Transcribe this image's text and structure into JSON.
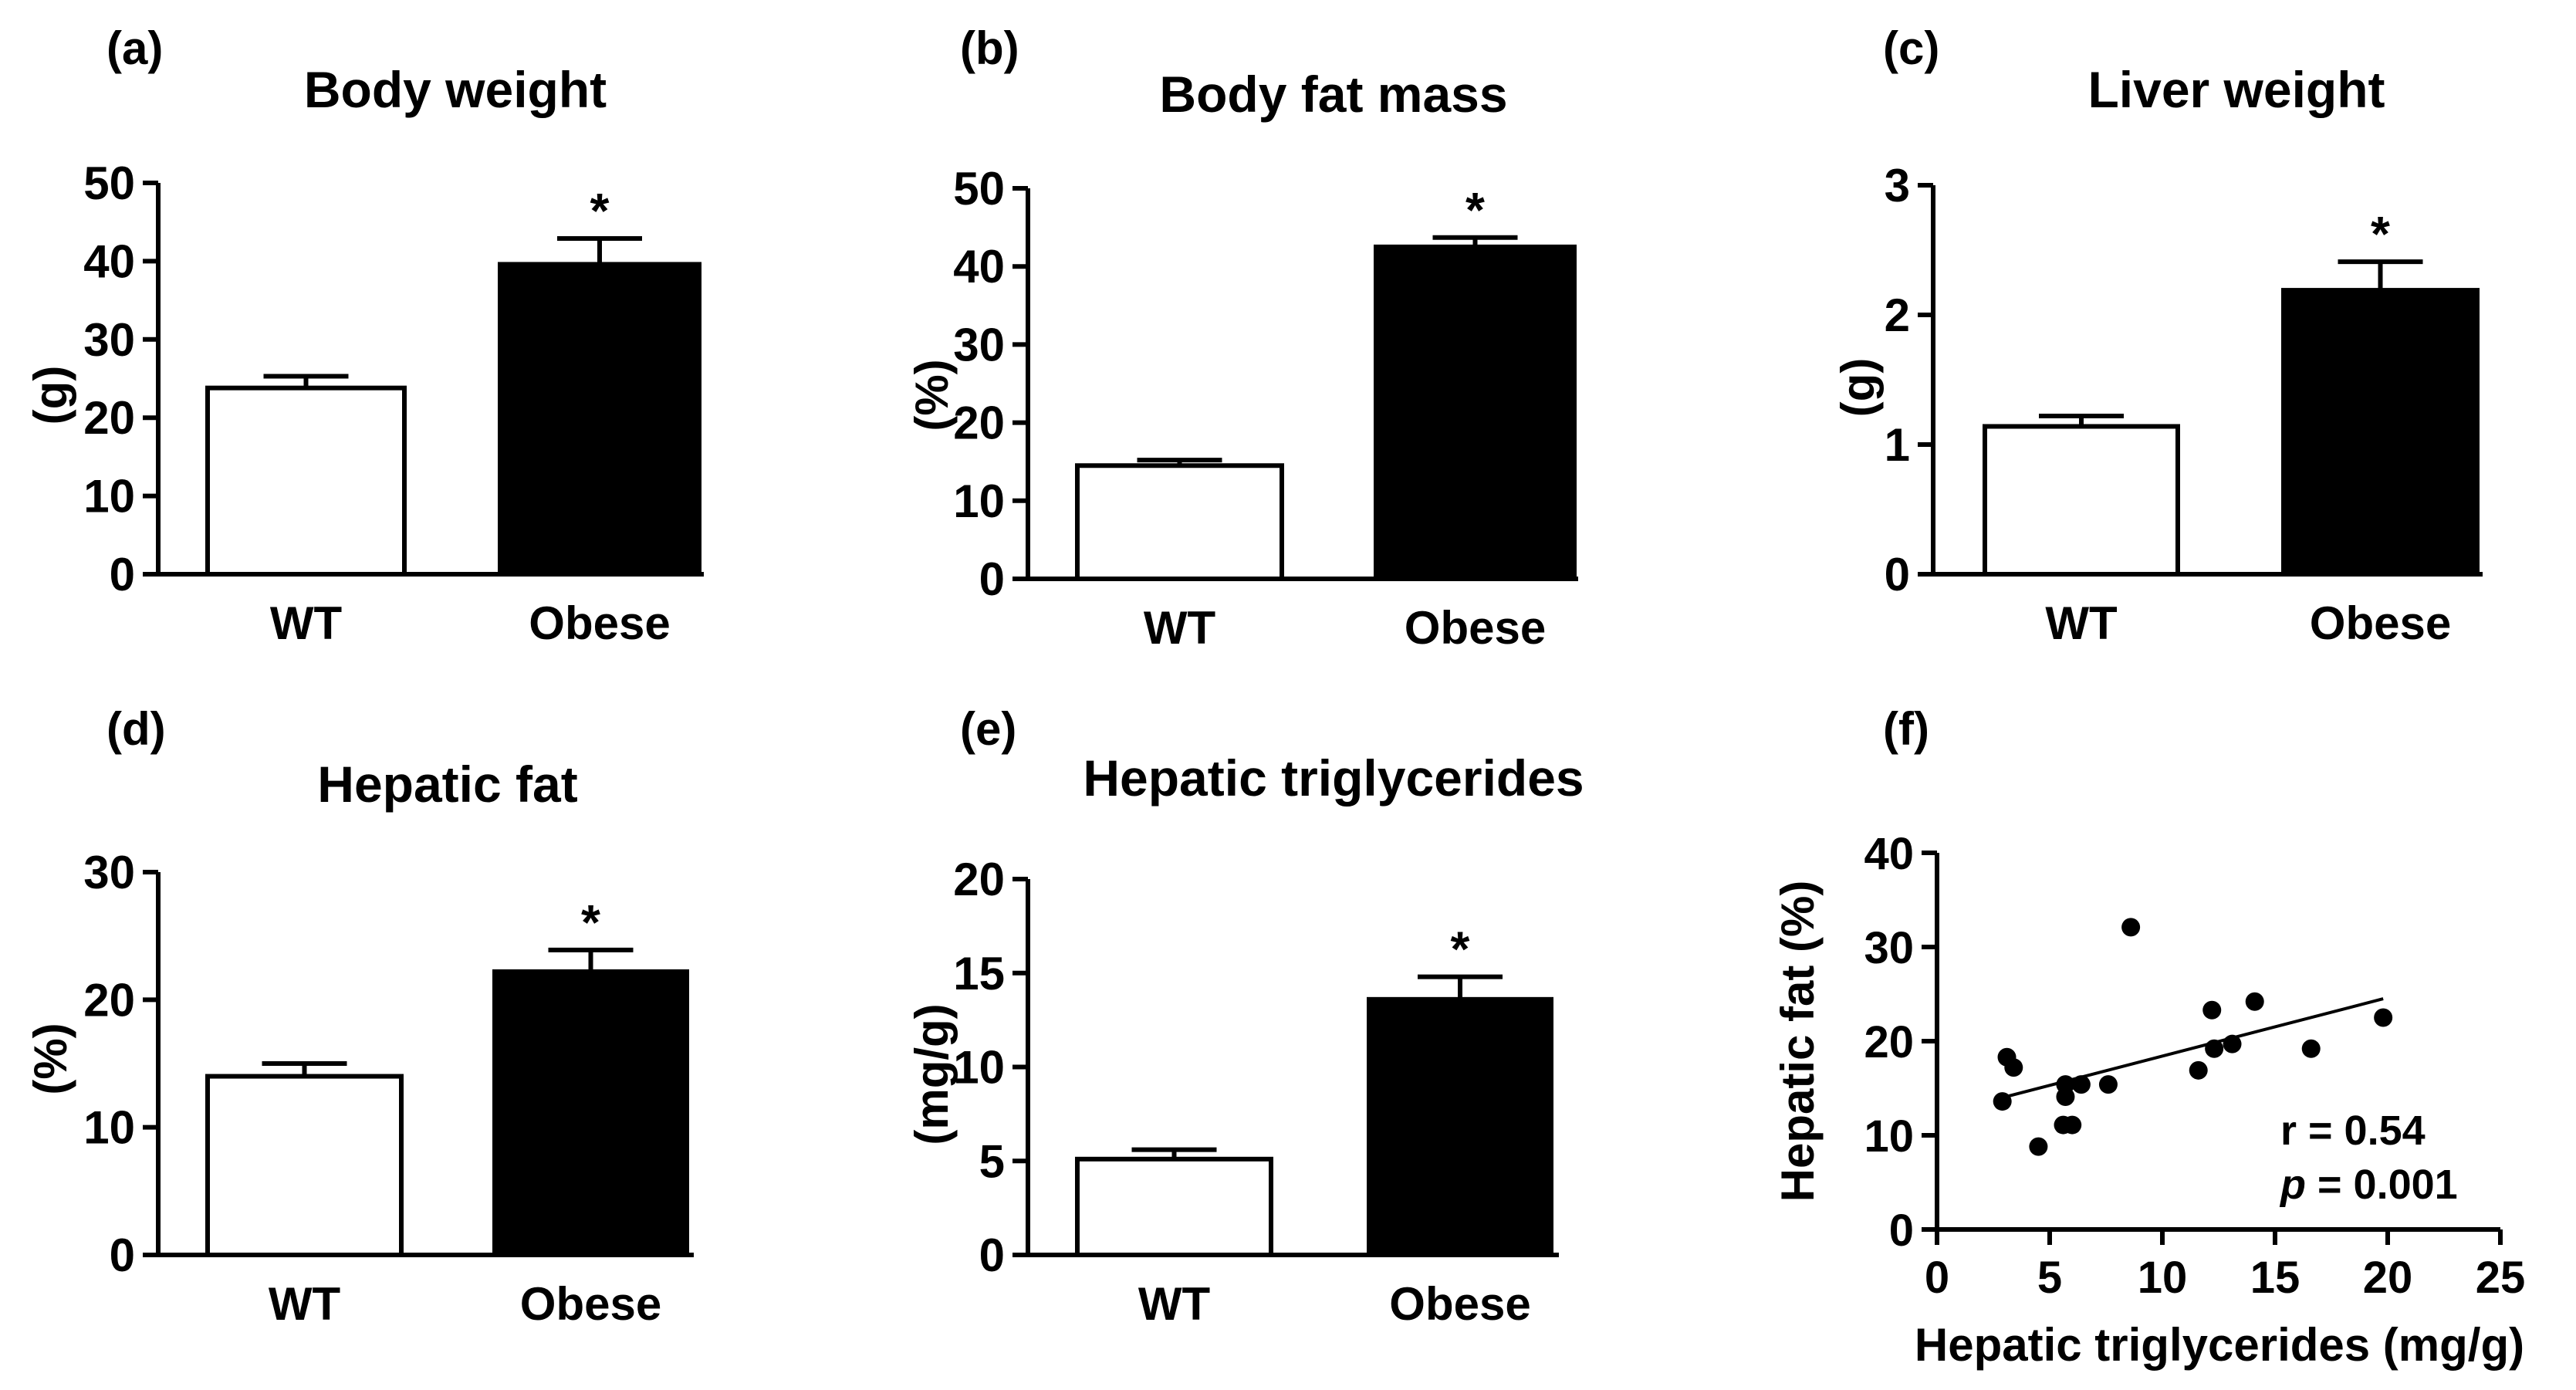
{
  "figure": {
    "panels": [
      {
        "label": "(a)",
        "title": "Body weight"
      },
      {
        "label": "(b)",
        "title": "Body fat mass"
      },
      {
        "label": "(c)",
        "title": "Liver weight"
      },
      {
        "label": "(d)",
        "title": "Hepatic fat"
      },
      {
        "label": "(e)",
        "title": "Hepatic triglycerides"
      },
      {
        "label": "(f)",
        "title": ""
      }
    ]
  },
  "chart_data": [
    {
      "type": "bar",
      "title": "Body weight",
      "xlabel": "",
      "ylabel": "(g)",
      "categories": [
        "WT",
        "Obese"
      ],
      "values": [
        23.8,
        39.6
      ],
      "errors": [
        1.5,
        3.3
      ],
      "bar_colors": [
        "#ffffff",
        "#000000"
      ],
      "significance": [
        "",
        "*"
      ],
      "ylim": [
        0,
        50
      ],
      "yticks": [
        0,
        10,
        20,
        30,
        40,
        50
      ]
    },
    {
      "type": "bar",
      "title": "Body fat mass",
      "xlabel": "",
      "ylabel": "(%)",
      "categories": [
        "WT",
        "Obese"
      ],
      "values": [
        14.5,
        42.5
      ],
      "errors": [
        0.7,
        1.2
      ],
      "bar_colors": [
        "#ffffff",
        "#000000"
      ],
      "significance": [
        "",
        "*"
      ],
      "ylim": [
        0,
        50
      ],
      "yticks": [
        0,
        10,
        20,
        30,
        40,
        50
      ]
    },
    {
      "type": "bar",
      "title": "Liver weight",
      "xlabel": "",
      "ylabel": "(g)",
      "categories": [
        "WT",
        "Obese"
      ],
      "values": [
        1.14,
        2.19
      ],
      "errors": [
        0.08,
        0.22
      ],
      "bar_colors": [
        "#ffffff",
        "#000000"
      ],
      "significance": [
        "",
        "*"
      ],
      "ylim": [
        0,
        3
      ],
      "yticks": [
        0,
        1,
        2,
        3
      ]
    },
    {
      "type": "bar",
      "title": "Hepatic fat",
      "xlabel": "",
      "ylabel": "(%)",
      "categories": [
        "WT",
        "Obese"
      ],
      "values": [
        14.0,
        22.2
      ],
      "errors": [
        1.0,
        1.7
      ],
      "bar_colors": [
        "#ffffff",
        "#000000"
      ],
      "significance": [
        "",
        "*"
      ],
      "ylim": [
        0,
        30
      ],
      "yticks": [
        0,
        10,
        20,
        30
      ]
    },
    {
      "type": "bar",
      "title": "Hepatic triglycerides",
      "xlabel": "",
      "ylabel": "(mg/g)",
      "categories": [
        "WT",
        "Obese"
      ],
      "values": [
        5.1,
        13.6
      ],
      "errors": [
        0.5,
        1.2
      ],
      "bar_colors": [
        "#ffffff",
        "#000000"
      ],
      "significance": [
        "",
        "*"
      ],
      "ylim": [
        0,
        20
      ],
      "yticks": [
        0,
        5,
        10,
        15,
        20
      ]
    },
    {
      "type": "scatter",
      "title": "",
      "xlabel": "Hepatic triglycerides (mg/g)",
      "ylabel": "Hepatic fat (%)",
      "xlim": [
        0,
        25
      ],
      "ylim": [
        0,
        40
      ],
      "xticks": [
        0,
        5,
        10,
        15,
        20,
        25
      ],
      "yticks": [
        0,
        10,
        20,
        30,
        40
      ],
      "points": [
        {
          "x": 2.9,
          "y": 13.6
        },
        {
          "x": 3.1,
          "y": 18.3
        },
        {
          "x": 3.4,
          "y": 17.2
        },
        {
          "x": 4.5,
          "y": 8.8
        },
        {
          "x": 5.6,
          "y": 11.1
        },
        {
          "x": 5.7,
          "y": 15.4
        },
        {
          "x": 5.7,
          "y": 14.1
        },
        {
          "x": 6.0,
          "y": 11.1
        },
        {
          "x": 6.4,
          "y": 15.4
        },
        {
          "x": 7.6,
          "y": 15.4
        },
        {
          "x": 8.6,
          "y": 32.1
        },
        {
          "x": 11.6,
          "y": 16.9
        },
        {
          "x": 12.2,
          "y": 23.3
        },
        {
          "x": 12.3,
          "y": 19.2
        },
        {
          "x": 13.1,
          "y": 19.7
        },
        {
          "x": 14.1,
          "y": 24.2
        },
        {
          "x": 16.6,
          "y": 19.2
        },
        {
          "x": 19.8,
          "y": 22.5
        }
      ],
      "fit_line": {
        "x": [
          2.9,
          19.8
        ],
        "y": [
          14.0,
          24.5
        ]
      },
      "annotations": [
        "r = 0.54",
        "p = 0.001"
      ]
    }
  ]
}
